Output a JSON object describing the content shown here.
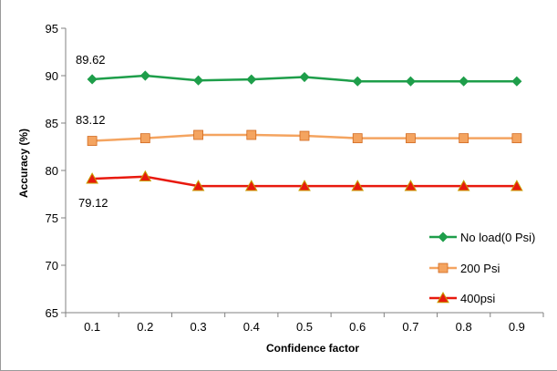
{
  "chart_data": {
    "type": "line",
    "title": "",
    "xlabel": "Confidence factor",
    "ylabel": "Accuracy (%)",
    "categories": [
      "0.1",
      "0.2",
      "0.3",
      "0.4",
      "0.5",
      "0.6",
      "0.7",
      "0.8",
      "0.9"
    ],
    "ylim": [
      65,
      95
    ],
    "yticks": [
      "65",
      "70",
      "75",
      "80",
      "85",
      "90",
      "95"
    ],
    "grid": false,
    "legend_position": "right",
    "series": [
      {
        "name": "No load(0 Psi)",
        "values": [
          89.62,
          90.0,
          89.5,
          89.6,
          89.85,
          89.4,
          89.4,
          89.4,
          89.4
        ],
        "color": "#1e9e4a",
        "marker": "diamond"
      },
      {
        "name": "200 Psi",
        "values": [
          83.12,
          83.4,
          83.75,
          83.75,
          83.65,
          83.4,
          83.4,
          83.4,
          83.4
        ],
        "color": "#f4a460",
        "marker": "square"
      },
      {
        "name": "400psi",
        "values": [
          79.12,
          79.35,
          78.35,
          78.35,
          78.35,
          78.35,
          78.35,
          78.35,
          78.35
        ],
        "color": "#e8190e",
        "marker": "triangle"
      }
    ],
    "annotations": [
      "89.62",
      "83.12",
      "79.12"
    ]
  }
}
